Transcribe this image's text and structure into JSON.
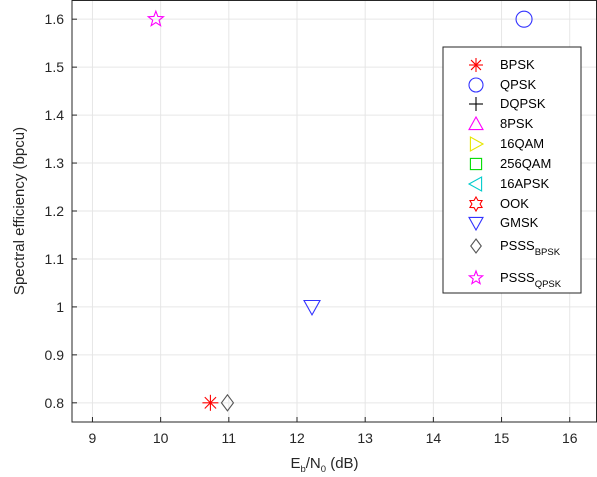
{
  "chart_data": {
    "type": "scatter",
    "xlabel": {
      "main": "E",
      "sub1": "b",
      "mid": "/N",
      "sub2": "0",
      "tail": " (dB)"
    },
    "ylabel": "Spectral efficiency (bpcu)",
    "xlim": [
      8.7,
      16.4
    ],
    "ylim": [
      0.76,
      1.64
    ],
    "xticks": [
      9,
      10,
      11,
      12,
      13,
      14,
      15,
      16
    ],
    "yticks": [
      0.8,
      0.9,
      1.0,
      1.1,
      1.2,
      1.3,
      1.4,
      1.5,
      1.6
    ],
    "ytick_labels": [
      "0.8",
      "0.9",
      "1",
      "1.1",
      "1.2",
      "1.3",
      "1.4",
      "1.5",
      "1.6"
    ],
    "grid": true,
    "legend_position": "right",
    "series": [
      {
        "name": "BPSK",
        "marker": "asterisk",
        "color": "#ff0000",
        "points": [
          [
            10.73,
            0.8
          ]
        ]
      },
      {
        "name": "QPSK",
        "marker": "circle",
        "color": "#3333ff",
        "points": [
          [
            15.33,
            1.6
          ]
        ]
      },
      {
        "name": "DQPSK",
        "marker": "plus",
        "color": "#000000",
        "points": []
      },
      {
        "name": "8PSK",
        "marker": "triangle-up",
        "color": "#ff00ff",
        "points": []
      },
      {
        "name": "16QAM",
        "marker": "triangle-right",
        "color": "#e6e600",
        "points": []
      },
      {
        "name": "256QAM",
        "marker": "square",
        "color": "#00dd00",
        "points": []
      },
      {
        "name": "16APSK",
        "marker": "triangle-left",
        "color": "#00cccc",
        "points": []
      },
      {
        "name": "OOK",
        "marker": "hexagram",
        "color": "#ff0000",
        "points": []
      },
      {
        "name": "GMSK",
        "marker": "triangle-down",
        "color": "#3333ff",
        "points": [
          [
            12.22,
            1.0
          ]
        ]
      },
      {
        "name": "PSSS",
        "name_sub": "BPSK",
        "marker": "diamond",
        "color": "#555555",
        "points": [
          [
            10.98,
            0.8
          ]
        ]
      },
      {
        "name": "PSSS",
        "name_sub": "QPSK",
        "marker": "pentagram",
        "color": "#ff00ff",
        "points": [
          [
            9.93,
            1.6
          ]
        ]
      }
    ]
  }
}
